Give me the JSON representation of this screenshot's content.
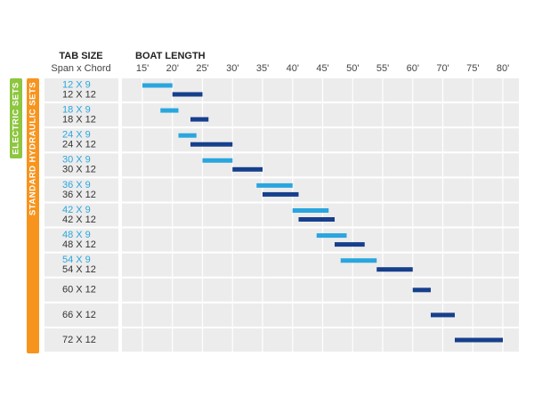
{
  "chart_data": {
    "type": "range",
    "tab_header": "TAB SIZE",
    "tab_subheader": "Span x Chord",
    "axis_title": "BOAT LENGTH",
    "side_labels": [
      "ELECTRIC SETS",
      "STANDARD HYDRAULIC SETS"
    ],
    "side_colors": [
      "#8dc63f",
      "#f7941d"
    ],
    "xlim": [
      15,
      80
    ],
    "xticks": [
      {
        "value": 15,
        "label": "15'"
      },
      {
        "value": 20,
        "label": "20'"
      },
      {
        "value": 25,
        "label": "25'"
      },
      {
        "value": 30,
        "label": "30'"
      },
      {
        "value": 35,
        "label": "35'"
      },
      {
        "value": 40,
        "label": "40'"
      },
      {
        "value": 45,
        "label": "45'"
      },
      {
        "value": 50,
        "label": "50'"
      },
      {
        "value": 55,
        "label": "55'"
      },
      {
        "value": 60,
        "label": "60'"
      },
      {
        "value": 70,
        "label": "70'"
      },
      {
        "value": 75,
        "label": "75'"
      },
      {
        "value": 80,
        "label": "80'"
      }
    ],
    "grid": true,
    "rows": [
      {
        "labels": [
          "12 X 9",
          "12 X 12"
        ],
        "values": [
          [
            15,
            20
          ],
          [
            20,
            25
          ]
        ],
        "colors": [
          "#2aa6de",
          "#163f8c"
        ]
      },
      {
        "labels": [
          "18 X 9",
          "18 X 12"
        ],
        "values": [
          [
            18,
            21
          ],
          [
            23,
            26
          ]
        ],
        "colors": [
          "#2aa6de",
          "#163f8c"
        ]
      },
      {
        "labels": [
          "24 X 9",
          "24 X 12"
        ],
        "values": [
          [
            21,
            24
          ],
          [
            23,
            30
          ]
        ],
        "colors": [
          "#2aa6de",
          "#163f8c"
        ]
      },
      {
        "labels": [
          "30 X 9",
          "30 X 12"
        ],
        "values": [
          [
            25,
            30
          ],
          [
            30,
            35
          ]
        ],
        "colors": [
          "#2aa6de",
          "#163f8c"
        ]
      },
      {
        "labels": [
          "36 X 9",
          "36 X 12"
        ],
        "values": [
          [
            34,
            40
          ],
          [
            35,
            41
          ]
        ],
        "colors": [
          "#2aa6de",
          "#163f8c"
        ]
      },
      {
        "labels": [
          "42 X 9",
          "42 X 12"
        ],
        "values": [
          [
            40,
            46
          ],
          [
            41,
            47
          ]
        ],
        "colors": [
          "#2aa6de",
          "#163f8c"
        ]
      },
      {
        "labels": [
          "48 X 9",
          "48 X 12"
        ],
        "values": [
          [
            44,
            49
          ],
          [
            47,
            52
          ]
        ],
        "colors": [
          "#2aa6de",
          "#163f8c"
        ]
      },
      {
        "labels": [
          "54 X 9",
          "54 X 12"
        ],
        "values": [
          [
            48,
            54
          ],
          [
            54,
            60
          ]
        ],
        "colors": [
          "#2aa6de",
          "#163f8c"
        ]
      },
      {
        "labels": [
          "60 X 12"
        ],
        "values": [
          [
            60,
            66
          ]
        ],
        "colors": [
          "#163f8c"
        ]
      },
      {
        "labels": [
          "66 X 12"
        ],
        "values": [
          [
            66,
            72
          ]
        ],
        "colors": [
          "#163f8c"
        ]
      },
      {
        "labels": [
          "72 X 12"
        ],
        "values": [
          [
            72,
            80
          ]
        ],
        "colors": [
          "#163f8c"
        ]
      }
    ]
  }
}
